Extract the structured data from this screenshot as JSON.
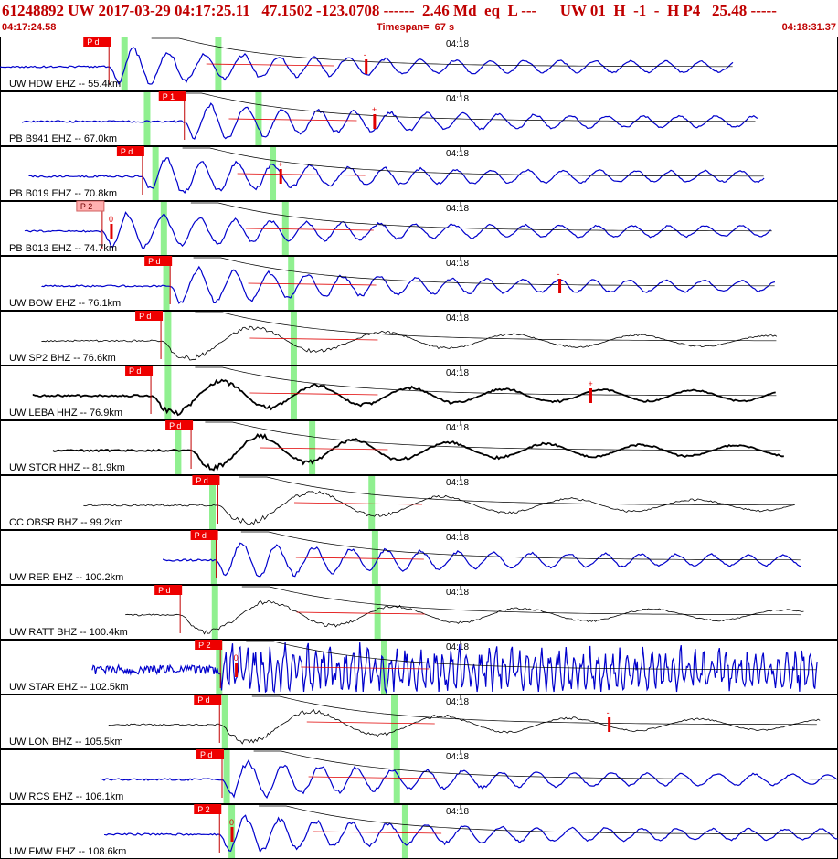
{
  "header": {
    "title": "61248892 UW 2017-03-29 04:17:25.11   47.1502 -123.0708 ------  2.46 Md  eq  L ---      UW 01  H  -1  -  H P4   25.48 -----",
    "start_time": "04:17:24.58",
    "timespan": "Timespan=  67 s",
    "end_time": "04:18:31.37"
  },
  "time_tick_label": "04:18",
  "colors": {
    "title": "#c00000",
    "trace_blue": "#0000cc",
    "trace_black": "#000000",
    "pick_box": "#ee0000",
    "pick_box_light": "#ffb0b0",
    "window": "#90f090",
    "coda": "#e00000"
  },
  "traces": [
    {
      "label": "UW HDW EHZ -- 55.4km",
      "pick": "P d",
      "pick_light": false,
      "color": "blue",
      "seed": 3,
      "style": "mid",
      "p": 0.13,
      "end": 0.875,
      "start": 0.0,
      "w1": 0.148,
      "w2": 0.26,
      "mark": 0.437,
      "mark_sym": "-"
    },
    {
      "label": "PB B941 EHZ -- 67.0km",
      "pick": "P 1",
      "pick_light": false,
      "color": "blue",
      "seed": 7,
      "style": "mid",
      "p": 0.22,
      "end": 0.905,
      "start": 0.027,
      "w1": 0.175,
      "w2": 0.308,
      "mark": 0.447,
      "mark_sym": "+"
    },
    {
      "label": "PB B019 EHZ -- 70.8km",
      "pick": "P d",
      "pick_light": false,
      "color": "blue",
      "seed": 11,
      "style": "mid",
      "p": 0.17,
      "end": 0.912,
      "start": 0.035,
      "w1": 0.185,
      "w2": 0.325,
      "mark": 0.335,
      "mark_sym": "+"
    },
    {
      "label": "PB B013 EHZ -- 74.7km",
      "pick": "P 2",
      "pick_light": true,
      "color": "blue",
      "seed": 13,
      "style": "mid",
      "p": 0.122,
      "end": 0.922,
      "start": 0.03,
      "w1": 0.195,
      "w2": 0.34,
      "mark": 0.133,
      "mark_sym": "0"
    },
    {
      "label": "UW BOW EHZ -- 76.1km",
      "pick": "P d",
      "pick_light": false,
      "color": "blue",
      "seed": 17,
      "style": "mid",
      "p": 0.203,
      "end": 0.925,
      "start": 0.05,
      "w1": 0.198,
      "w2": 0.347,
      "mark": 0.668,
      "mark_sym": "-"
    },
    {
      "label": "UW SP2 BHZ -- 76.6km",
      "pick": "P d",
      "pick_light": false,
      "color": "black",
      "seed": 19,
      "style": "thin",
      "p": 0.192,
      "end": 0.927,
      "start": 0.05,
      "w1": 0.2,
      "w2": 0.35,
      "mark": -1,
      "mark_sym": ""
    },
    {
      "label": "UW LEBA HHZ -- 76.9km",
      "pick": "P d",
      "pick_light": false,
      "color": "black",
      "seed": 23,
      "style": "thick",
      "p": 0.18,
      "end": 0.927,
      "start": 0.04,
      "w1": 0.2,
      "w2": 0.35,
      "mark": 0.705,
      "mark_sym": "+"
    },
    {
      "label": "UW STOR HHZ -- 81.9km",
      "pick": "P d",
      "pick_light": false,
      "color": "black",
      "seed": 29,
      "style": "thick",
      "p": 0.228,
      "end": 0.937,
      "start": 0.063,
      "w1": 0.212,
      "w2": 0.372,
      "mark": -1,
      "mark_sym": ""
    },
    {
      "label": "CC OBSR BHZ -- 99.2km",
      "pick": "P d",
      "pick_light": false,
      "color": "black",
      "seed": 31,
      "style": "thin",
      "p": 0.26,
      "end": 0.95,
      "start": 0.1,
      "w1": 0.253,
      "w2": 0.443,
      "mark": -1,
      "mark_sym": ""
    },
    {
      "label": "UW RER EHZ -- 100.2km",
      "pick": "P d",
      "pick_light": false,
      "color": "blue",
      "seed": 37,
      "style": "mid",
      "p": 0.258,
      "end": 0.958,
      "start": 0.195,
      "w1": 0.255,
      "w2": 0.447,
      "mark": -1,
      "mark_sym": ""
    },
    {
      "label": "UW RATT BHZ -- 100.4km",
      "pick": "P d",
      "pick_light": false,
      "color": "black",
      "seed": 41,
      "style": "thin",
      "p": 0.215,
      "end": 0.96,
      "start": 0.15,
      "w1": 0.256,
      "w2": 0.45,
      "mark": -1,
      "mark_sym": ""
    },
    {
      "label": "UW STAR EHZ -- 102.5km",
      "pick": "P 2",
      "pick_light": false,
      "color": "blue",
      "seed": 43,
      "style": "noisy",
      "p": 0.263,
      "end": 0.975,
      "start": 0.11,
      "w1": 0.261,
      "w2": 0.458,
      "mark": 0.282,
      "mark_sym": "0"
    },
    {
      "label": "UW LON BHZ -- 105.5km",
      "pick": "P d",
      "pick_light": false,
      "color": "black",
      "seed": 47,
      "style": "thin",
      "p": 0.262,
      "end": 0.98,
      "start": 0.13,
      "w1": 0.268,
      "w2": 0.47,
      "mark": 0.727,
      "mark_sym": "-"
    },
    {
      "label": "UW RCS EHZ -- 106.1km",
      "pick": "P d",
      "pick_light": false,
      "color": "blue",
      "seed": 53,
      "style": "mid",
      "p": 0.265,
      "end": 1.0,
      "start": 0.12,
      "w1": 0.27,
      "w2": 0.473,
      "mark": -1,
      "mark_sym": ""
    },
    {
      "label": "UW FMW EHZ -- 108.6km",
      "pick": "P 2",
      "pick_light": false,
      "color": "blue",
      "seed": 59,
      "style": "mid",
      "p": 0.262,
      "end": 1.0,
      "start": 0.125,
      "w1": 0.276,
      "w2": 0.483,
      "mark": 0.277,
      "mark_sym": "0"
    }
  ]
}
